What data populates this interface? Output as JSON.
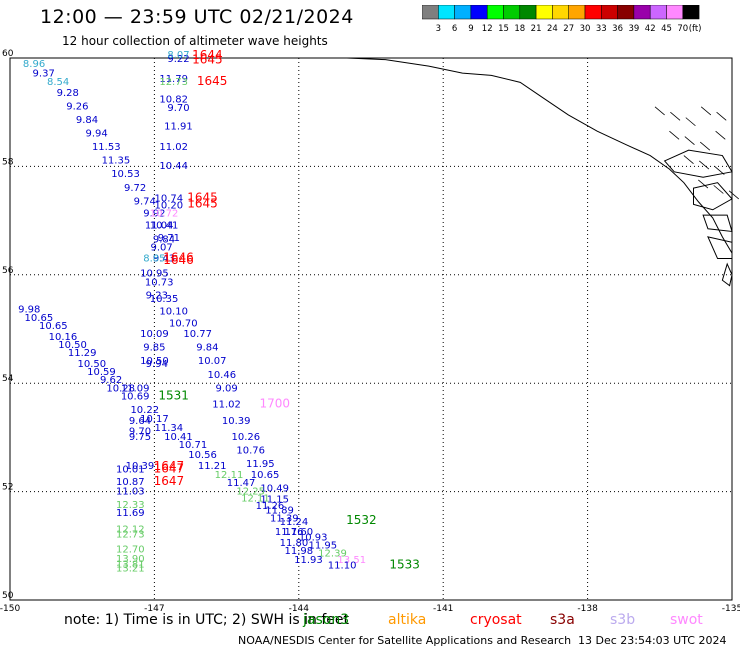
{
  "title": "12:00 — 23:59 UTC 02/21/2024",
  "subtitle": "12 hour collection of altimeter wave heights",
  "colorbar": {
    "unit": "(ft)",
    "levels": [
      {
        "label": "3",
        "color": "#7f7f7f"
      },
      {
        "label": "6",
        "color": "#00e5ff"
      },
      {
        "label": "9",
        "color": "#00b0ff"
      },
      {
        "label": "12",
        "color": "#0000ff"
      },
      {
        "label": "15",
        "color": "#00ff00"
      },
      {
        "label": "18",
        "color": "#00cc00"
      },
      {
        "label": "21",
        "color": "#008800"
      },
      {
        "label": "24",
        "color": "#ffff00"
      },
      {
        "label": "27",
        "color": "#ffd700"
      },
      {
        "label": "30",
        "color": "#ffa500"
      },
      {
        "label": "33",
        "color": "#ff0000"
      },
      {
        "label": "36",
        "color": "#cc0000"
      },
      {
        "label": "39",
        "color": "#880000"
      },
      {
        "label": "42",
        "color": "#9900aa"
      },
      {
        "label": "45",
        "color": "#cc66ff"
      },
      {
        "label": "70",
        "color": "#ff88ff"
      },
      {
        "label": "",
        "color": "#000000"
      }
    ]
  },
  "axes": {
    "lat_labels": [
      "60",
      "58",
      "56",
      "54",
      "52",
      "50"
    ],
    "lon_labels": [
      "-150",
      "-147",
      "-144",
      "-141",
      "-138",
      "-135"
    ]
  },
  "chart_data": {
    "type": "scatter",
    "x_axis": "longitude",
    "y_axis": "latitude",
    "xlim": [
      -150,
      -135
    ],
    "ylim": [
      50,
      60
    ],
    "points": [
      {
        "v": "9.22",
        "lon": -146.5,
        "lat": 59.93,
        "c": "#0000cc"
      },
      {
        "v": "8.07",
        "lon": -146.5,
        "lat": 60.0,
        "c": "#33aacc"
      },
      {
        "v": "8.96",
        "lon": -149.5,
        "lat": 59.83,
        "c": "#33aacc"
      },
      {
        "v": "9.37",
        "lon": -149.3,
        "lat": 59.66,
        "c": "#0000cc"
      },
      {
        "v": "8.54",
        "lon": -149.0,
        "lat": 59.5,
        "c": "#33aacc"
      },
      {
        "v": "9.28",
        "lon": -148.8,
        "lat": 59.3,
        "c": "#0000cc"
      },
      {
        "v": "9.26",
        "lon": -148.6,
        "lat": 59.05,
        "c": "#0000cc"
      },
      {
        "v": "9.84",
        "lon": -148.4,
        "lat": 58.8,
        "c": "#0000cc"
      },
      {
        "v": "9.94",
        "lon": -148.2,
        "lat": 58.55,
        "c": "#0000cc"
      },
      {
        "v": "11.53",
        "lon": -148.0,
        "lat": 58.3,
        "c": "#0000cc"
      },
      {
        "v": "11.35",
        "lon": -147.8,
        "lat": 58.05,
        "c": "#0000cc"
      },
      {
        "v": "10.53",
        "lon": -147.6,
        "lat": 57.8,
        "c": "#0000cc"
      },
      {
        "v": "9.72",
        "lon": -147.4,
        "lat": 57.55,
        "c": "#0000cc"
      },
      {
        "v": "9.74",
        "lon": -147.2,
        "lat": 57.3,
        "c": "#0000cc"
      },
      {
        "v": "9.92",
        "lon": -147.0,
        "lat": 57.08,
        "c": "#0000cc"
      },
      {
        "v": "11.04",
        "lon": -146.9,
        "lat": 56.85,
        "c": "#0000cc"
      },
      {
        "v": "9.71",
        "lon": -146.7,
        "lat": 56.62,
        "c": "#0000cc"
      },
      {
        "v": "11.79",
        "lon": -146.6,
        "lat": 59.56,
        "c": "#0000cc"
      },
      {
        "v": "12.73",
        "lon": -146.6,
        "lat": 59.5,
        "c": "#66cc66"
      },
      {
        "v": "10.82",
        "lon": -146.6,
        "lat": 59.18,
        "c": "#0000cc"
      },
      {
        "v": "9.70",
        "lon": -146.5,
        "lat": 59.02,
        "c": "#0000cc"
      },
      {
        "v": "11.91",
        "lon": -146.5,
        "lat": 58.68,
        "c": "#0000cc"
      },
      {
        "v": "11.02",
        "lon": -146.6,
        "lat": 58.3,
        "c": "#0000cc"
      },
      {
        "v": "10.44",
        "lon": -146.6,
        "lat": 57.95,
        "c": "#0000cc"
      },
      {
        "v": "10.74",
        "lon": -146.7,
        "lat": 57.35,
        "c": "#0000cc"
      },
      {
        "v": "10.20",
        "lon": -146.7,
        "lat": 57.22,
        "c": "#0000cc"
      },
      {
        "v": "10.41",
        "lon": -146.8,
        "lat": 56.85,
        "c": "#0000cc"
      },
      {
        "v": "9.84",
        "lon": -146.8,
        "lat": 56.6,
        "c": "#0000cc"
      },
      {
        "v": "9.07",
        "lon": -146.85,
        "lat": 56.45,
        "c": "#0000cc"
      },
      {
        "v": "9.43",
        "lon": -146.8,
        "lat": 56.25,
        "c": "#0000cc"
      },
      {
        "v": "10.95",
        "lon": -147.0,
        "lat": 55.97,
        "c": "#0000cc"
      },
      {
        "v": "10.73",
        "lon": -146.9,
        "lat": 55.8,
        "c": "#0000cc"
      },
      {
        "v": "9.23",
        "lon": -146.95,
        "lat": 55.56,
        "c": "#0000cc"
      },
      {
        "v": "10.35",
        "lon": -146.8,
        "lat": 55.5,
        "c": "#0000cc"
      },
      {
        "v": "10.10",
        "lon": -146.6,
        "lat": 55.27,
        "c": "#0000cc"
      },
      {
        "v": "10.70",
        "lon": -146.4,
        "lat": 55.05,
        "c": "#0000cc"
      },
      {
        "v": "10.09",
        "lon": -147.0,
        "lat": 54.85,
        "c": "#0000cc"
      },
      {
        "v": "10.77",
        "lon": -146.1,
        "lat": 54.85,
        "c": "#0000cc"
      },
      {
        "v": "9.85",
        "lon": -147.0,
        "lat": 54.6,
        "c": "#0000cc"
      },
      {
        "v": "9.84",
        "lon": -145.9,
        "lat": 54.6,
        "c": "#0000cc"
      },
      {
        "v": "10.50",
        "lon": -147.0,
        "lat": 54.35,
        "c": "#0000cc"
      },
      {
        "v": "10.07",
        "lon": -145.8,
        "lat": 54.35,
        "c": "#0000cc"
      },
      {
        "v": "9.94",
        "lon": -146.95,
        "lat": 54.3,
        "c": "#0000cc"
      },
      {
        "v": "10.46",
        "lon": -145.6,
        "lat": 54.1,
        "c": "#0000cc"
      },
      {
        "v": "9.98",
        "lon": -149.6,
        "lat": 55.3,
        "c": "#0000cc"
      },
      {
        "v": "10.65",
        "lon": -149.4,
        "lat": 55.15,
        "c": "#0000cc"
      },
      {
        "v": "10.65",
        "lon": -149.1,
        "lat": 55.0,
        "c": "#0000cc"
      },
      {
        "v": "10.16",
        "lon": -148.9,
        "lat": 54.8,
        "c": "#0000cc"
      },
      {
        "v": "10.50",
        "lon": -148.7,
        "lat": 54.65,
        "c": "#0000cc"
      },
      {
        "v": "11.29",
        "lon": -148.5,
        "lat": 54.5,
        "c": "#0000cc"
      },
      {
        "v": "10.50",
        "lon": -148.3,
        "lat": 54.3,
        "c": "#0000cc"
      },
      {
        "v": "10.59",
        "lon": -148.1,
        "lat": 54.15,
        "c": "#0000cc"
      },
      {
        "v": "9.62",
        "lon": -147.9,
        "lat": 54.0,
        "c": "#0000cc"
      },
      {
        "v": "10.28",
        "lon": -147.7,
        "lat": 53.85,
        "c": "#0000cc"
      },
      {
        "v": "11.09",
        "lon": -147.4,
        "lat": 53.85,
        "c": "#0000cc"
      },
      {
        "v": "10.69",
        "lon": -147.4,
        "lat": 53.7,
        "c": "#0000cc"
      },
      {
        "v": "9.09",
        "lon": -145.5,
        "lat": 53.85,
        "c": "#0000cc"
      },
      {
        "v": "11.02",
        "lon": -145.5,
        "lat": 53.55,
        "c": "#0000cc"
      },
      {
        "v": "10.22",
        "lon": -147.2,
        "lat": 53.45,
        "c": "#0000cc"
      },
      {
        "v": "10.17",
        "lon": -147.0,
        "lat": 53.28,
        "c": "#0000cc"
      },
      {
        "v": "9.64",
        "lon": -147.3,
        "lat": 53.25,
        "c": "#0000cc"
      },
      {
        "v": "10.39",
        "lon": -145.3,
        "lat": 53.25,
        "c": "#0000cc"
      },
      {
        "v": "11.34",
        "lon": -146.7,
        "lat": 53.12,
        "c": "#0000cc"
      },
      {
        "v": "9.70",
        "lon": -147.3,
        "lat": 53.05,
        "c": "#0000cc"
      },
      {
        "v": "9.75",
        "lon": -147.3,
        "lat": 52.95,
        "c": "#0000cc"
      },
      {
        "v": "10.41",
        "lon": -146.5,
        "lat": 52.95,
        "c": "#0000cc"
      },
      {
        "v": "10.26",
        "lon": -145.1,
        "lat": 52.95,
        "c": "#0000cc"
      },
      {
        "v": "10.71",
        "lon": -146.2,
        "lat": 52.8,
        "c": "#0000cc"
      },
      {
        "v": "10.76",
        "lon": -145.0,
        "lat": 52.7,
        "c": "#0000cc"
      },
      {
        "v": "10.56",
        "lon": -146.0,
        "lat": 52.62,
        "c": "#0000cc"
      },
      {
        "v": "10.39",
        "lon": -147.3,
        "lat": 52.42,
        "c": "#0000cc"
      },
      {
        "v": "10.01",
        "lon": -147.5,
        "lat": 52.35,
        "c": "#0000cc"
      },
      {
        "v": "11.21",
        "lon": -145.8,
        "lat": 52.42,
        "c": "#0000cc"
      },
      {
        "v": "11.95",
        "lon": -144.8,
        "lat": 52.45,
        "c": "#0000cc"
      },
      {
        "v": "12.11",
        "lon": -145.45,
        "lat": 52.25,
        "c": "#66cc66"
      },
      {
        "v": "10.65",
        "lon": -144.7,
        "lat": 52.25,
        "c": "#0000cc"
      },
      {
        "v": "11.47",
        "lon": -145.2,
        "lat": 52.1,
        "c": "#0000cc"
      },
      {
        "v": "10.87",
        "lon": -147.5,
        "lat": 52.12,
        "c": "#0000cc"
      },
      {
        "v": "10.49",
        "lon": -144.5,
        "lat": 52.0,
        "c": "#0000cc"
      },
      {
        "v": "11.03",
        "lon": -147.5,
        "lat": 51.95,
        "c": "#0000cc"
      },
      {
        "v": "12.25",
        "lon": -145.0,
        "lat": 51.95,
        "c": "#66cc66"
      },
      {
        "v": "12.11",
        "lon": -144.9,
        "lat": 51.82,
        "c": "#66cc66"
      },
      {
        "v": "11.15",
        "lon": -144.5,
        "lat": 51.8,
        "c": "#0000cc"
      },
      {
        "v": "11.26",
        "lon": -144.6,
        "lat": 51.68,
        "c": "#0000cc"
      },
      {
        "v": "12.33",
        "lon": -147.5,
        "lat": 51.7,
        "c": "#66cc66"
      },
      {
        "v": "11.89",
        "lon": -144.4,
        "lat": 51.6,
        "c": "#0000cc"
      },
      {
        "v": "11.69",
        "lon": -147.5,
        "lat": 51.55,
        "c": "#0000cc"
      },
      {
        "v": "11.39",
        "lon": -144.3,
        "lat": 51.45,
        "c": "#0000cc"
      },
      {
        "v": "11.24",
        "lon": -144.1,
        "lat": 51.38,
        "c": "#0000cc"
      },
      {
        "v": "12.12",
        "lon": -147.5,
        "lat": 51.25,
        "c": "#66cc66"
      },
      {
        "v": "12.73",
        "lon": -147.5,
        "lat": 51.15,
        "c": "#66cc66"
      },
      {
        "v": "11.60",
        "lon": -144.0,
        "lat": 51.2,
        "c": "#0000cc"
      },
      {
        "v": "11.76",
        "lon": -144.2,
        "lat": 51.2,
        "c": "#0000cc"
      },
      {
        "v": "10.93",
        "lon": -143.7,
        "lat": 51.1,
        "c": "#0000cc"
      },
      {
        "v": "11.80",
        "lon": -144.1,
        "lat": 51.0,
        "c": "#0000cc"
      },
      {
        "v": "11.95",
        "lon": -143.5,
        "lat": 50.95,
        "c": "#0000cc"
      },
      {
        "v": "12.70",
        "lon": -147.5,
        "lat": 50.88,
        "c": "#66cc66"
      },
      {
        "v": "11.98",
        "lon": -144.0,
        "lat": 50.85,
        "c": "#0000cc"
      },
      {
        "v": "12.39",
        "lon": -143.3,
        "lat": 50.8,
        "c": "#66cc66"
      },
      {
        "v": "13.90",
        "lon": -147.5,
        "lat": 50.7,
        "c": "#66cc66"
      },
      {
        "v": "11.93",
        "lon": -143.8,
        "lat": 50.68,
        "c": "#0000cc"
      },
      {
        "v": "13.51",
        "lon": -142.9,
        "lat": 50.68,
        "c": "#ff88ff"
      },
      {
        "v": "13.81",
        "lon": -147.5,
        "lat": 50.6,
        "c": "#66cc66"
      },
      {
        "v": "11.10",
        "lon": -143.1,
        "lat": 50.58,
        "c": "#0000cc"
      },
      {
        "v": "13.21",
        "lon": -147.5,
        "lat": 50.53,
        "c": "#66cc66"
      },
      {
        "v": "10.72",
        "lon": -146.8,
        "lat": 57.08,
        "c": "#ff88ff"
      },
      {
        "v": "8.85",
        "lon": -147.0,
        "lat": 56.25,
        "c": "#33aacc"
      }
    ],
    "passes": [
      {
        "label": "1644",
        "lon": -145.9,
        "lat": 59.98,
        "c": "#ff0000"
      },
      {
        "label": "1645",
        "lon": -145.9,
        "lat": 59.9,
        "c": "#ff0000"
      },
      {
        "label": "1645",
        "lon": -145.8,
        "lat": 59.5,
        "c": "#ff0000"
      },
      {
        "label": "1645",
        "lon": -146.0,
        "lat": 57.35,
        "c": "#ff0000"
      },
      {
        "label": "1645",
        "lon": -146.0,
        "lat": 57.24,
        "c": "#ff0000"
      },
      {
        "label": "1646",
        "lon": -146.5,
        "lat": 56.25,
        "c": "#ff0000"
      },
      {
        "label": "1646",
        "lon": -146.5,
        "lat": 56.2,
        "c": "#ff0000"
      },
      {
        "label": "1531",
        "lon": -146.6,
        "lat": 53.7,
        "c": "#008800"
      },
      {
        "label": "1700",
        "lon": -144.5,
        "lat": 53.55,
        "c": "#ff88ff"
      },
      {
        "label": "1647",
        "lon": -146.7,
        "lat": 52.4,
        "c": "#ff0000"
      },
      {
        "label": "1647",
        "lon": -146.7,
        "lat": 52.35,
        "c": "#ff0000"
      },
      {
        "label": "1647",
        "lon": -146.7,
        "lat": 52.12,
        "c": "#ff0000"
      },
      {
        "label": "1532",
        "lon": -142.7,
        "lat": 51.4,
        "c": "#008800"
      },
      {
        "label": "1533",
        "lon": -141.8,
        "lat": 50.58,
        "c": "#008800"
      }
    ]
  },
  "note_text": "note:  1) Time is in UTC; 2) SWH is in feet",
  "satellites": [
    {
      "name": "jason3",
      "color": "#008800"
    },
    {
      "name": "altika",
      "color": "#ff9900"
    },
    {
      "name": "cryosat",
      "color": "#ff0000"
    },
    {
      "name": "s3a",
      "color": "#880000"
    },
    {
      "name": "s3b",
      "color": "#bbaaee"
    },
    {
      "name": "swot",
      "color": "#ff88ff"
    }
  ],
  "credit": "NOAA/NESDIS Center for Satellite Applications and Research",
  "timestamp": "13 Dec 23:54:03 UTC 2024"
}
